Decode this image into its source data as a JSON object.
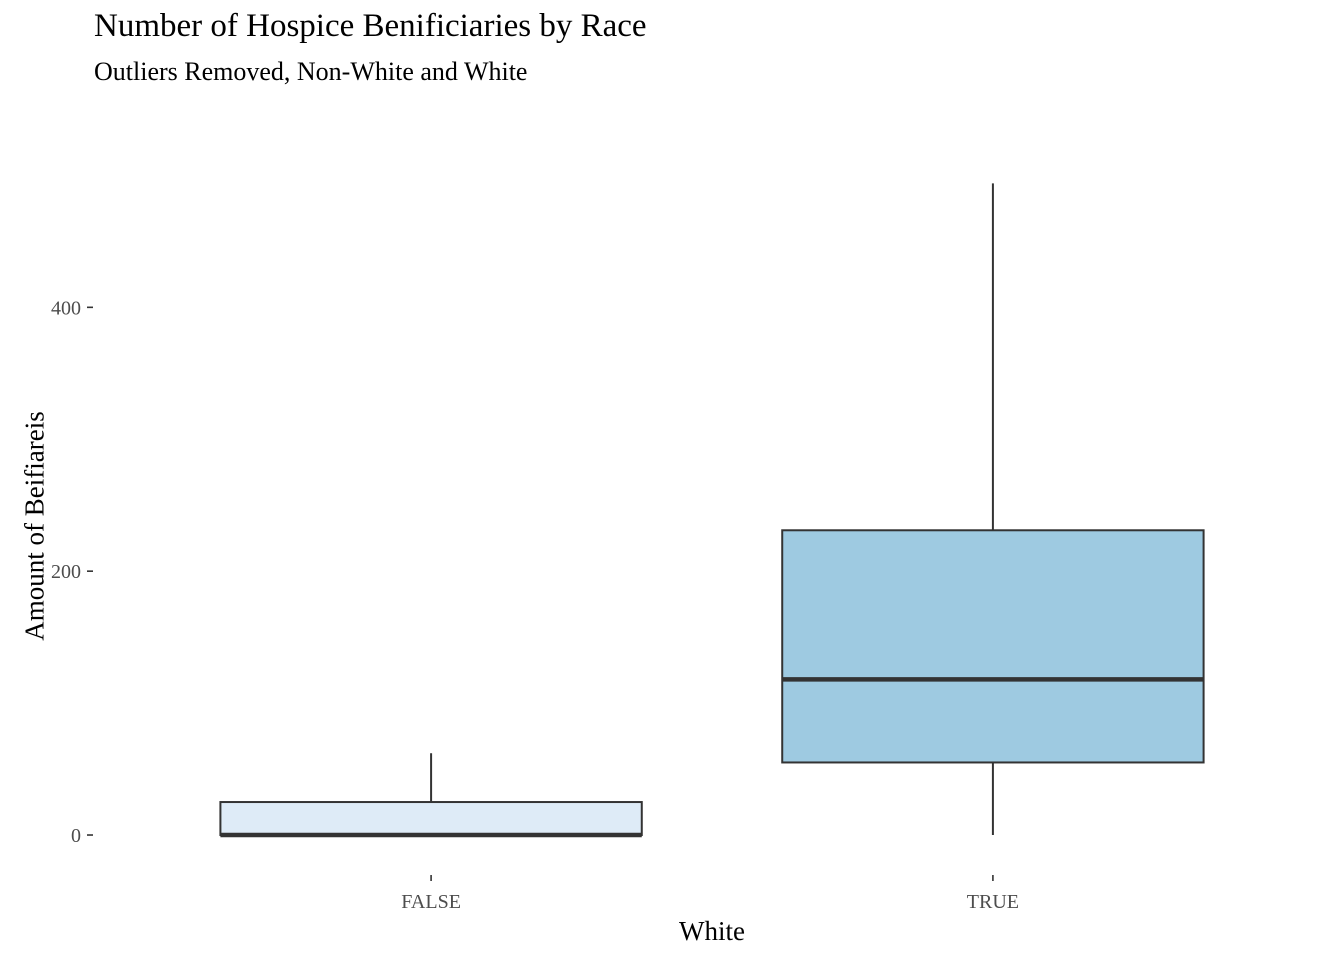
{
  "title": "Number of Hospice Benificiaries by Race",
  "subtitle": "Outliers Removed, Non-White and White",
  "chart_data": {
    "type": "boxplot",
    "title": "Number of Hospice Benificiaries by Race",
    "subtitle": "Outliers Removed, Non-White and White",
    "xlabel": "White",
    "ylabel": "Amount of Beifiareis",
    "categories": [
      "FALSE",
      "TRUE"
    ],
    "y_ticks": [
      0,
      200,
      400
    ],
    "ylim": [
      -25,
      495
    ],
    "grid": false,
    "legend": "none",
    "boxes": [
      {
        "category": "FALSE",
        "min": 0,
        "q1": 0,
        "median": 0,
        "q3": 25,
        "max": 62,
        "fill": "#deebf7"
      },
      {
        "category": "TRUE",
        "min": 0,
        "q1": 55,
        "median": 118,
        "q3": 231,
        "max": 494,
        "fill": "#9ecae1"
      }
    ]
  }
}
